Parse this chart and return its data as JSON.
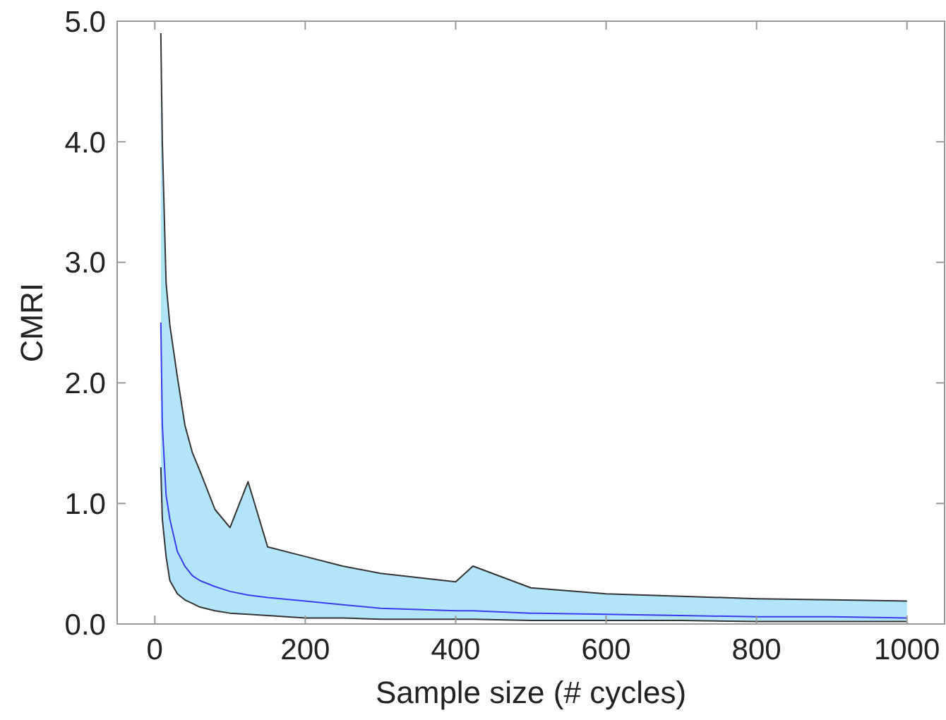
{
  "chart_data": {
    "type": "line",
    "xlabel": "Sample size (# cycles)",
    "ylabel": "CMRI",
    "xlim": [
      -50,
      1050
    ],
    "ylim": [
      0,
      5
    ],
    "xticks": [
      0,
      200,
      400,
      600,
      800,
      1000
    ],
    "yticks": [
      {
        "value": 0,
        "label": "0.0"
      },
      {
        "value": 1,
        "label": "1.0"
      },
      {
        "value": 2,
        "label": "2.0"
      },
      {
        "value": 3,
        "label": "3.0"
      },
      {
        "value": 4,
        "label": "4.0"
      },
      {
        "value": 5,
        "label": "5.0"
      }
    ],
    "grid": false,
    "marker": "none",
    "line_style": "solid",
    "x": [
      8,
      10,
      15,
      20,
      30,
      40,
      50,
      60,
      80,
      100,
      124,
      150,
      200,
      250,
      300,
      400,
      423,
      500,
      600,
      700,
      800,
      900,
      1000
    ],
    "series": [
      {
        "color": "#3b3bf0",
        "values": [
          2.5,
          1.65,
          1.07,
          0.87,
          0.6,
          0.48,
          0.4,
          0.36,
          0.31,
          0.27,
          0.24,
          0.22,
          0.19,
          0.16,
          0.13,
          0.11,
          0.11,
          0.09,
          0.08,
          0.07,
          0.06,
          0.06,
          0.05
        ],
        "lower": [
          1.3,
          0.87,
          0.56,
          0.36,
          0.25,
          0.2,
          0.17,
          0.14,
          0.11,
          0.09,
          0.08,
          0.07,
          0.05,
          0.05,
          0.04,
          0.04,
          0.04,
          0.03,
          0.03,
          0.03,
          0.02,
          0.02,
          0.02
        ],
        "upper": [
          4.9,
          4.0,
          2.83,
          2.48,
          2.05,
          1.65,
          1.42,
          1.27,
          0.95,
          0.8,
          1.18,
          0.64,
          0.56,
          0.48,
          0.42,
          0.35,
          0.48,
          0.3,
          0.25,
          0.23,
          0.21,
          0.2,
          0.19
        ]
      },
      {
        "color": "#333333",
        "values": [
          4.9,
          4.0,
          2.83,
          2.48,
          2.05,
          1.65,
          1.42,
          1.27,
          0.95,
          0.8,
          1.18,
          0.64,
          0.56,
          0.48,
          0.42,
          0.35,
          0.48,
          0.3,
          0.25,
          0.23,
          0.21,
          0.2,
          0.19
        ]
      },
      {
        "color": "#333333",
        "values": [
          1.3,
          0.87,
          0.56,
          0.36,
          0.25,
          0.2,
          0.17,
          0.14,
          0.11,
          0.09,
          0.08,
          0.07,
          0.05,
          0.05,
          0.04,
          0.04,
          0.04,
          0.03,
          0.03,
          0.03,
          0.02,
          0.02,
          0.02
        ]
      }
    ]
  }
}
